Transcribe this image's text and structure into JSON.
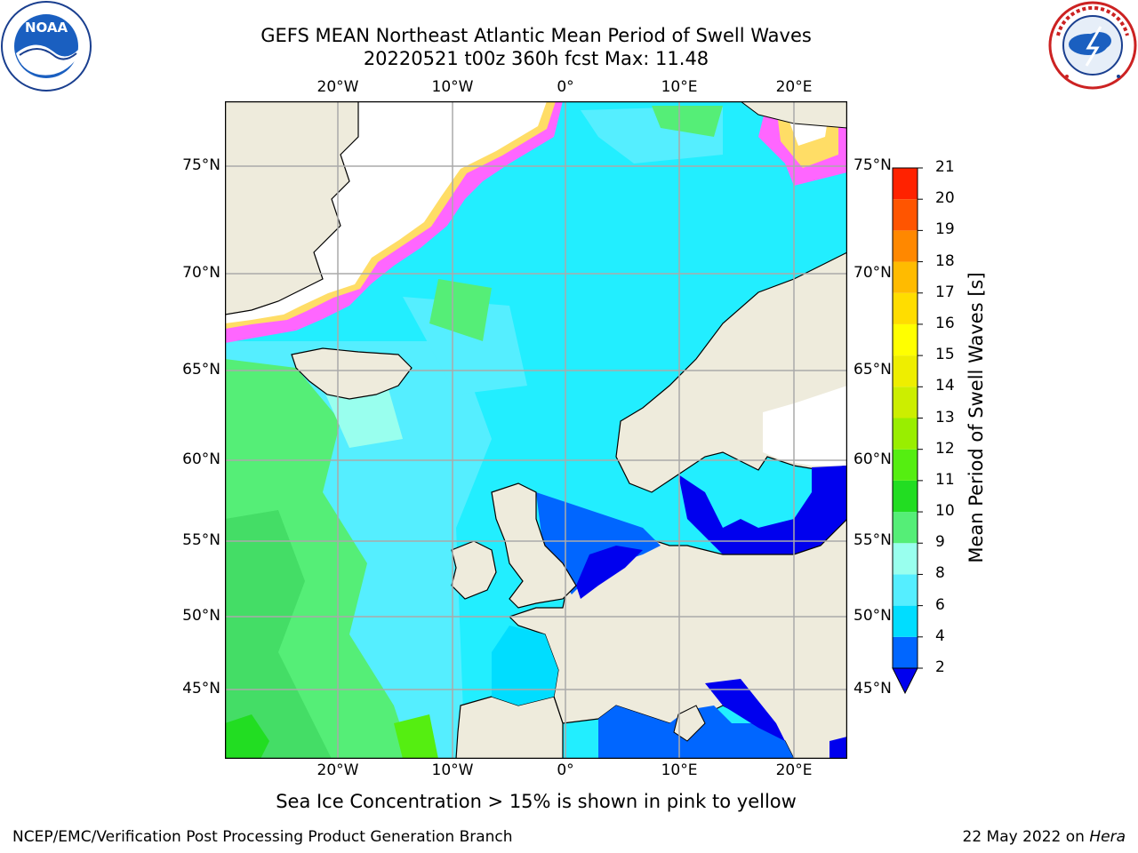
{
  "title": {
    "line1": "GEFS MEAN Northeast Atlantic Mean Period of Swell Waves",
    "line2": "20220521 t00z 360h fcst   Max: 11.48"
  },
  "logos": {
    "left": "noaa-logo",
    "left_text": "NATIONAL OCEANIC AND ATMOSPHERIC ADMINISTRATION · U.S. DEPARTMENT OF COMMERCE",
    "left_center": "NOAA",
    "right": "nws-logo",
    "right_text": "NATIONAL WEATHER SERVICE"
  },
  "map": {
    "lon_labels": [
      "20°W",
      "10°W",
      "0°",
      "10°E",
      "20°E"
    ],
    "lat_labels": [
      "75°N",
      "70°N",
      "65°N",
      "60°N",
      "55°N",
      "50°N",
      "45°N"
    ],
    "extent": {
      "lon": [
        -30,
        24
      ],
      "lat": [
        41,
        78
      ]
    },
    "colors": {
      "land": "#eeebdc",
      "ice_pink": "#ff66ff",
      "ice_yellow": "#ffdd66",
      "white_no_data": "#ffffff",
      "grid": "#aaaaaa"
    }
  },
  "colorbar": {
    "title": "Mean Period of Swell Waves [s]",
    "levels": [
      "2",
      "4",
      "6",
      "8",
      "9",
      "10",
      "11",
      "12",
      "13",
      "14",
      "15",
      "16",
      "17",
      "18",
      "19",
      "20",
      "21"
    ],
    "colors": [
      "#0066ff",
      "#00ddff",
      "#55eeff",
      "#99ffee",
      "#55ee77",
      "#22dd22",
      "#55ee11",
      "#99ee00",
      "#ccee00",
      "#eeee00",
      "#ffff00",
      "#ffdd00",
      "#ffbb00",
      "#ff8800",
      "#ff5500",
      "#ff2200"
    ],
    "under_color": "#0000ee"
  },
  "note": "Sea Ice Concentration > 15% is shown in pink to yellow",
  "footer": {
    "left": "NCEP/EMC/Verification Post Processing Product Generation Branch",
    "right_date": "22 May 2022 on",
    "right_host": "Hera"
  }
}
